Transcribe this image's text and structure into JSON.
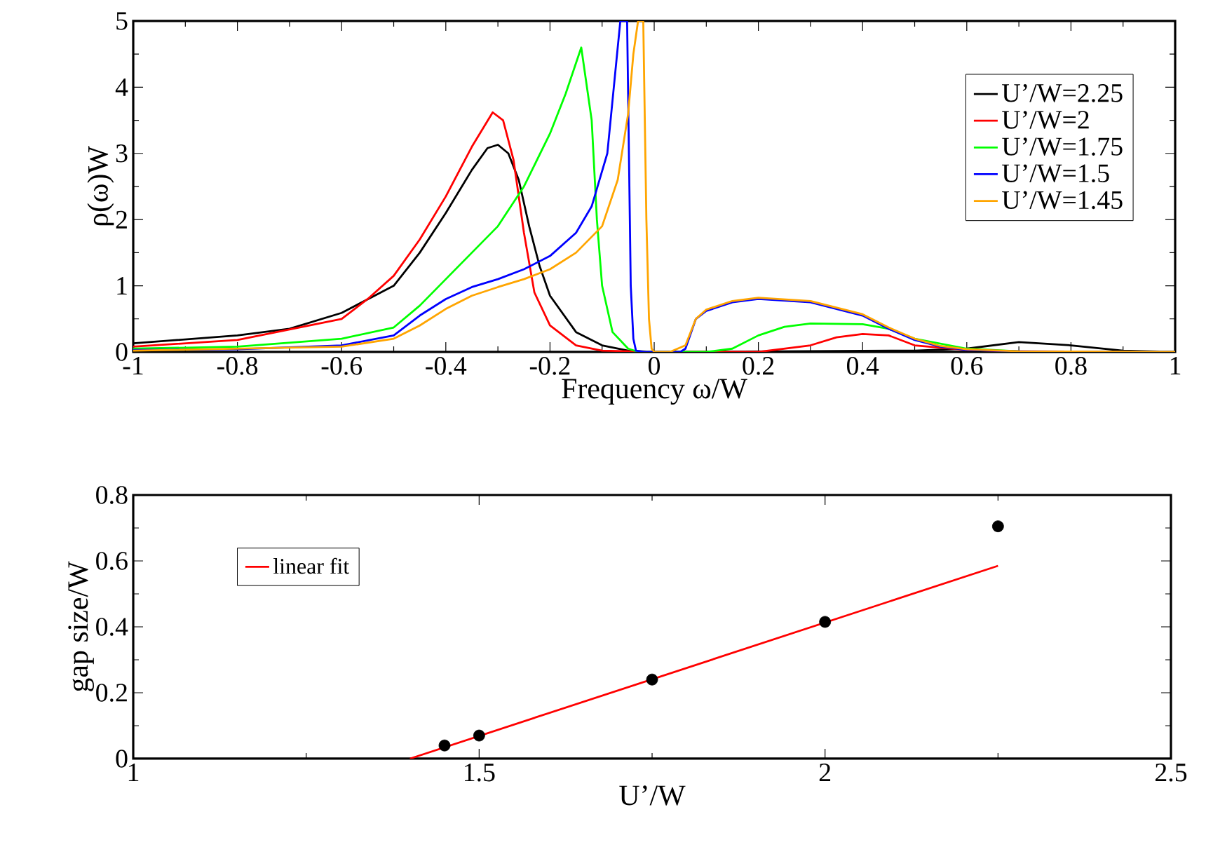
{
  "chart_data": [
    {
      "type": "line",
      "xlabel": "Frequency ω/W",
      "ylabel": "ρ(ω)W",
      "xlim": [
        -1,
        1
      ],
      "ylim": [
        0,
        5
      ],
      "xticks": [
        -1,
        -0.8,
        -0.6,
        -0.4,
        -0.2,
        0,
        0.2,
        0.4,
        0.6,
        0.8,
        1
      ],
      "yticks": [
        0,
        1,
        2,
        3,
        4,
        5
      ],
      "legend": "top right",
      "series": [
        {
          "name": "U’/W=2.25",
          "color": "#000000",
          "x": [
            -1,
            -0.8,
            -0.7,
            -0.6,
            -0.5,
            -0.45,
            -0.4,
            -0.35,
            -0.32,
            -0.3,
            -0.28,
            -0.26,
            -0.24,
            -0.22,
            -0.2,
            -0.15,
            -0.1,
            -0.05,
            0,
            0.5,
            0.6,
            0.7,
            0.8,
            0.9,
            1
          ],
          "values": [
            0.13,
            0.25,
            0.35,
            0.59,
            1.0,
            1.5,
            2.1,
            2.75,
            3.08,
            3.13,
            3.0,
            2.6,
            1.9,
            1.3,
            0.85,
            0.3,
            0.1,
            0.02,
            0,
            0.02,
            0.05,
            0.15,
            0.1,
            0.02,
            0
          ]
        },
        {
          "name": "U’/W=2",
          "color": "#ff0000",
          "x": [
            -1,
            -0.8,
            -0.6,
            -0.55,
            -0.5,
            -0.45,
            -0.4,
            -0.35,
            -0.31,
            -0.29,
            -0.27,
            -0.25,
            -0.23,
            -0.2,
            -0.15,
            -0.1,
            0,
            0.2,
            0.3,
            0.35,
            0.4,
            0.45,
            0.5,
            0.6,
            0.7,
            1
          ],
          "values": [
            0.08,
            0.18,
            0.5,
            0.8,
            1.15,
            1.7,
            2.35,
            3.1,
            3.62,
            3.5,
            2.9,
            1.8,
            0.9,
            0.4,
            0.1,
            0.02,
            0,
            0,
            0.1,
            0.22,
            0.27,
            0.25,
            0.1,
            0.03,
            0.01,
            0
          ]
        },
        {
          "name": "U’/W=1.75",
          "color": "#00ff00",
          "x": [
            -1,
            -0.8,
            -0.6,
            -0.5,
            -0.45,
            -0.4,
            -0.35,
            -0.3,
            -0.25,
            -0.2,
            -0.17,
            -0.14,
            -0.12,
            -0.11,
            -0.1,
            -0.08,
            -0.05,
            -0.03,
            0.1,
            0.15,
            0.2,
            0.25,
            0.3,
            0.4,
            0.45,
            0.5,
            0.6,
            0.7,
            1
          ],
          "values": [
            0.05,
            0.08,
            0.2,
            0.37,
            0.7,
            1.1,
            1.5,
            1.9,
            2.5,
            3.3,
            3.9,
            4.6,
            3.5,
            2.0,
            1.0,
            0.3,
            0.05,
            0,
            0,
            0.05,
            0.25,
            0.38,
            0.43,
            0.42,
            0.35,
            0.2,
            0.05,
            0.01,
            0
          ]
        },
        {
          "name": "U’/W=1.5",
          "color": "#0000ff",
          "x": [
            -1,
            -0.8,
            -0.6,
            -0.5,
            -0.45,
            -0.4,
            -0.35,
            -0.3,
            -0.25,
            -0.2,
            -0.15,
            -0.12,
            -0.09,
            -0.075,
            -0.065,
            -0.052,
            -0.045,
            -0.04,
            -0.035,
            -0.02,
            0.05,
            0.06,
            0.08,
            0.1,
            0.15,
            0.2,
            0.3,
            0.4,
            0.45,
            0.5,
            0.55,
            0.6,
            0.7,
            1
          ],
          "values": [
            0.03,
            0.04,
            0.1,
            0.25,
            0.55,
            0.8,
            0.98,
            1.1,
            1.25,
            1.45,
            1.8,
            2.2,
            3.0,
            4.2,
            5,
            5,
            1.0,
            0.2,
            0.02,
            0,
            0,
            0.05,
            0.5,
            0.62,
            0.75,
            0.8,
            0.75,
            0.55,
            0.35,
            0.18,
            0.08,
            0.03,
            0.01,
            0
          ]
        },
        {
          "name": "U’/W=1.45",
          "color": "#ffa500",
          "x": [
            -1,
            -0.6,
            -0.5,
            -0.45,
            -0.4,
            -0.35,
            -0.3,
            -0.25,
            -0.2,
            -0.15,
            -0.1,
            -0.07,
            -0.05,
            -0.04,
            -0.031,
            -0.021,
            -0.015,
            -0.01,
            -0.005,
            0,
            0.03,
            0.06,
            0.08,
            0.1,
            0.15,
            0.2,
            0.3,
            0.4,
            0.45,
            0.5,
            0.55,
            0.6,
            0.7,
            1
          ],
          "values": [
            0.02,
            0.08,
            0.2,
            0.4,
            0.65,
            0.85,
            0.98,
            1.1,
            1.25,
            1.5,
            1.9,
            2.6,
            3.6,
            4.5,
            5,
            5,
            2.0,
            0.5,
            0.05,
            0,
            0,
            0.1,
            0.5,
            0.64,
            0.77,
            0.82,
            0.77,
            0.57,
            0.37,
            0.2,
            0.09,
            0.04,
            0.01,
            0
          ]
        }
      ]
    },
    {
      "type": "scatter",
      "xlabel": "U’/W",
      "ylabel": "gap size/W",
      "xlim": [
        1,
        2.5
      ],
      "ylim": [
        0,
        0.8
      ],
      "xticks": [
        1,
        1.5,
        2,
        2.5
      ],
      "yticks": [
        0,
        0.2,
        0.4,
        0.6,
        0.8
      ],
      "legend": "top left",
      "series": [
        {
          "color": "#000000",
          "marker": "circle",
          "x": [
            1.45,
            1.5,
            1.75,
            2,
            2.25
          ],
          "values": [
            0.04,
            0.07,
            0.24,
            0.415,
            0.705
          ]
        },
        {
          "type": "line",
          "name": "linear fit",
          "marker": "none",
          "color": "#ff0000",
          "x": [
            1.4,
            2.25
          ],
          "values": [
            0,
            0.585
          ]
        }
      ]
    }
  ]
}
